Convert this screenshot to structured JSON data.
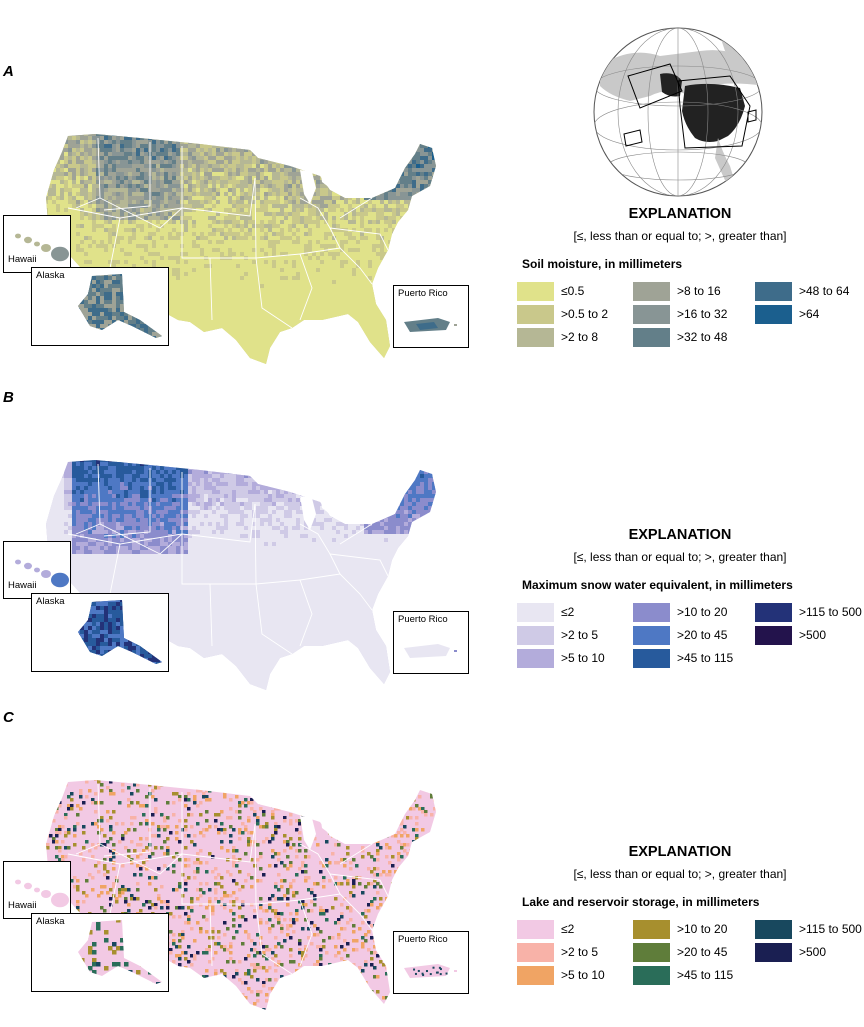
{
  "panels": [
    {
      "letter": "A",
      "explanation": "EXPLANATION",
      "note": "[≤, less than or equal to; >, greater than]",
      "legend_title": "Soil moisture, in millimeters",
      "insets": {
        "hawaii": "Hawaii",
        "alaska": "Alaska",
        "puerto_rico": "Puerto Rico"
      },
      "classes": [
        {
          "label": "≤0.5",
          "color": "#e0e28a"
        },
        {
          "label": ">0.5 to 2",
          "color": "#c9c88b"
        },
        {
          "label": ">2 to 8",
          "color": "#b5b795"
        },
        {
          "label": ">8 to 16",
          "color": "#9fa396"
        },
        {
          "label": ">16 to 32",
          "color": "#889595"
        },
        {
          "label": ">32 to 48",
          "color": "#637f89"
        },
        {
          "label": ">48 to 64",
          "color": "#3e6c8a"
        },
        {
          "label": ">64",
          "color": "#1b5f8e"
        }
      ]
    },
    {
      "letter": "B",
      "explanation": "EXPLANATION",
      "note": "[≤, less than or equal to; >, greater than]",
      "legend_title": "Maximum snow water equivalent, in millimeters",
      "insets": {
        "hawaii": "Hawaii",
        "alaska": "Alaska",
        "puerto_rico": "Puerto Rico"
      },
      "classes": [
        {
          "label": "≤2",
          "color": "#e8e6f2"
        },
        {
          "label": ">2 to 5",
          "color": "#cfcae6"
        },
        {
          "label": ">5 to 10",
          "color": "#b3acdb"
        },
        {
          "label": ">10 to 20",
          "color": "#8b8ccc"
        },
        {
          "label": ">20 to 45",
          "color": "#4e78c4"
        },
        {
          "label": ">45 to 115",
          "color": "#275a9c"
        },
        {
          "label": ">115 to 500",
          "color": "#233278"
        },
        {
          "label": ">500",
          "color": "#23134c"
        }
      ]
    },
    {
      "letter": "C",
      "explanation": "EXPLANATION",
      "note": "[≤, less than or equal to; >, greater than]",
      "legend_title": "Lake and reservoir storage, in millimeters",
      "insets": {
        "hawaii": "Hawaii",
        "alaska": "Alaska",
        "puerto_rico": "Puerto Rico"
      },
      "classes": [
        {
          "label": "≤2",
          "color": "#f2c9e4"
        },
        {
          "label": ">2 to 5",
          "color": "#f8b2a8"
        },
        {
          "label": ">5 to 10",
          "color": "#f0a464"
        },
        {
          "label": ">10 to 20",
          "color": "#a78f2e"
        },
        {
          "label": ">20 to 45",
          "color": "#5f7d3a"
        },
        {
          "label": ">45 to 115",
          "color": "#2a6d59"
        },
        {
          "label": ">115 to 500",
          "color": "#18485e"
        },
        {
          "label": ">500",
          "color": "#1a1f52"
        }
      ]
    }
  ]
}
